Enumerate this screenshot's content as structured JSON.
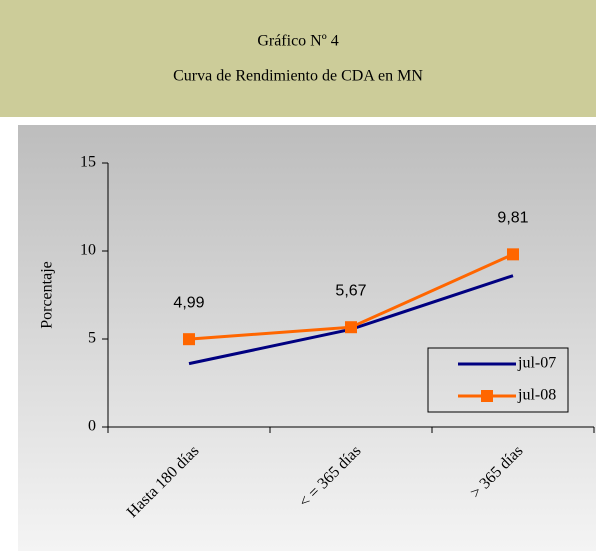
{
  "chart_data": {
    "type": "line",
    "title": "Gráfico Nº 4",
    "subtitle": "Curva de Rendimiento de CDA en MN",
    "y_label": "Porcentaje",
    "categories": [
      "Hasta 180 días",
      "< = 365 días",
      "> 365 días"
    ],
    "series": [
      {
        "name": "jul-07",
        "color": "#000080",
        "values": [
          3.6,
          5.55,
          8.6
        ]
      },
      {
        "name": "jul-08",
        "color": "#ff6600",
        "marker": "square",
        "values": [
          4.99,
          5.67,
          9.81
        ],
        "value_labels": [
          "4,99",
          "5,67",
          "9,81"
        ]
      }
    ],
    "ylim": [
      0,
      15
    ],
    "yticks": [
      0,
      5,
      10,
      15
    ],
    "grid": false,
    "legend": "lower right"
  }
}
